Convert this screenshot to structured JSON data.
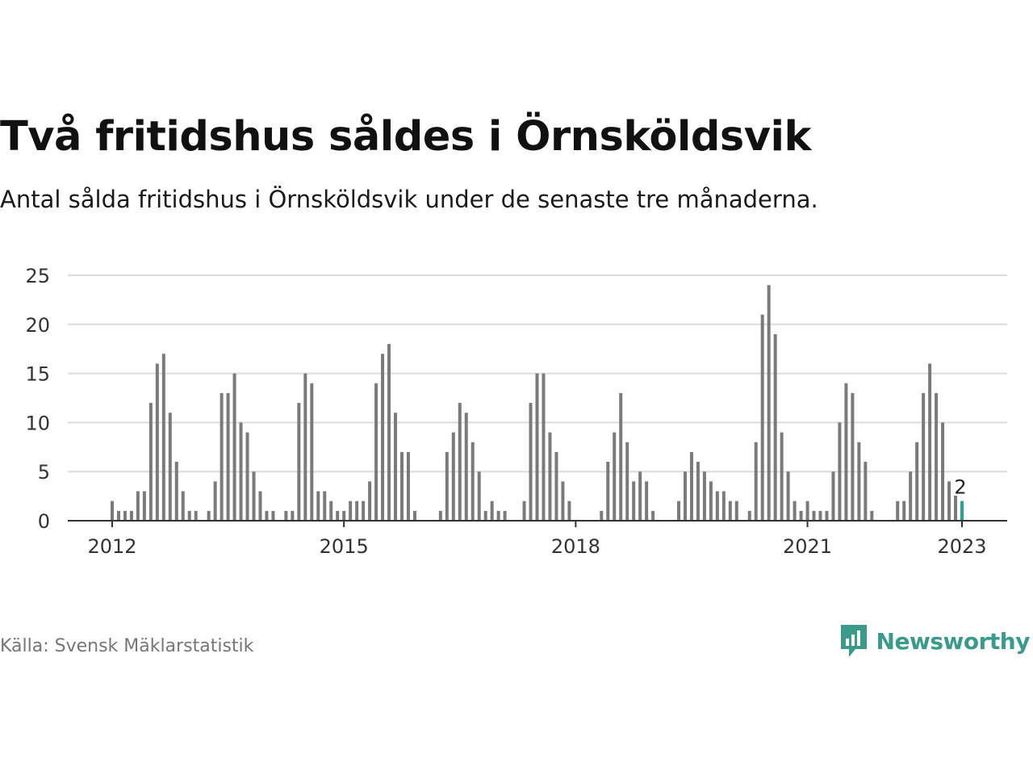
{
  "title": "Två fritidshus såldes i Örnsköldsvik",
  "subtitle": "Antal sålda fritidshus i Örnsköldsvik under de senaste tre månaderna.",
  "source": "Källa: Svensk Mäklarstatistik",
  "brand": {
    "name": "Newsworthy",
    "icon": "newsworthy-logo-icon",
    "color": "#3a9a8c"
  },
  "chart_data": {
    "type": "bar",
    "title": "Två fritidshus såldes i Örnsköldsvik",
    "subtitle": "Antal sålda fritidshus i Örnsköldsvik under de senaste tre månaderna.",
    "xlabel": "",
    "ylabel": "",
    "ylim": [
      0,
      25
    ],
    "yticks": [
      0,
      5,
      10,
      15,
      20,
      25
    ],
    "x_start": "2012-01",
    "x_end": "2023-01",
    "xticks": [
      "2012",
      "2015",
      "2018",
      "2021",
      "2023"
    ],
    "grid": true,
    "bar_color": "#7a7a7a",
    "highlight_color": "#2aa198",
    "highlight_label": "2",
    "series": [
      {
        "values": [
          2,
          1,
          1,
          1,
          3,
          3,
          12,
          16,
          17,
          11,
          6,
          3,
          1,
          1,
          0,
          1,
          4,
          13,
          13,
          15,
          10,
          9,
          5,
          3,
          1,
          1,
          0,
          1,
          1,
          12,
          15,
          14,
          3,
          3,
          2,
          1,
          1,
          2,
          2,
          2,
          4,
          14,
          17,
          18,
          11,
          7,
          7,
          1,
          0,
          0,
          0,
          1,
          7,
          9,
          12,
          11,
          8,
          5,
          1,
          2,
          1,
          1,
          0,
          0,
          2,
          12,
          15,
          15,
          9,
          7,
          4,
          2,
          0,
          0,
          0,
          0,
          1,
          6,
          9,
          13,
          8,
          4,
          5,
          4,
          1,
          0,
          0,
          0,
          2,
          5,
          7,
          6,
          5,
          4,
          3,
          3,
          2,
          2,
          0,
          1,
          8,
          21,
          24,
          19,
          9,
          5,
          2,
          1,
          2,
          1,
          1,
          1,
          5,
          10,
          14,
          13,
          8,
          6,
          1,
          0,
          0,
          0,
          2,
          2,
          5,
          8,
          13,
          16,
          13,
          10,
          4,
          3,
          2
        ]
      }
    ]
  }
}
